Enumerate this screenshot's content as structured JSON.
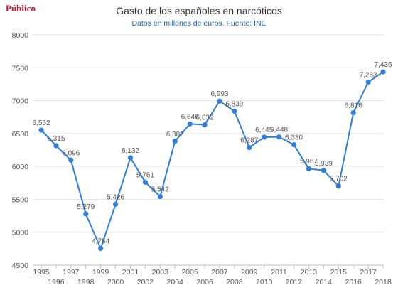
{
  "brand": "Público",
  "chart_data": {
    "type": "line",
    "title": "Gasto de los españoles en narcóticos",
    "subtitle": "Datos en millones de euros. Fuente: INE",
    "xlabel": "",
    "ylabel": "",
    "ylim": [
      4500,
      8000
    ],
    "yticks": [
      4500,
      5000,
      5500,
      6000,
      6500,
      7000,
      7500,
      8000
    ],
    "grid": true,
    "legend": "none",
    "series": [
      {
        "color": "#2f7ed8",
        "points": [
          {
            "x": "1995",
            "y": 6552,
            "label": "6,552"
          },
          {
            "x": "1996",
            "y": 6315,
            "label": "6,315"
          },
          {
            "x": "1997",
            "y": 6096,
            "label": "6,096"
          },
          {
            "x": "1998",
            "y": 5279,
            "label": "5,279"
          },
          {
            "x": "1999",
            "y": 4754,
            "label": "4,754"
          },
          {
            "x": "2000",
            "y": 5426,
            "label": "5,426"
          },
          {
            "x": "2001",
            "y": 6132,
            "label": "6,132"
          },
          {
            "x": "2002",
            "y": 5761,
            "label": "5,761"
          },
          {
            "x": "2003",
            "y": 5542,
            "label": "5,542"
          },
          {
            "x": "2004",
            "y": 6382,
            "label": "6,382"
          },
          {
            "x": "2005",
            "y": 6646,
            "label": "6,646"
          },
          {
            "x": "2006",
            "y": 6632,
            "label": "6,632"
          },
          {
            "x": "2007",
            "y": 6993,
            "label": "6,993"
          },
          {
            "x": "2008",
            "y": 6839,
            "label": "6,839"
          },
          {
            "x": "2009",
            "y": 6287,
            "label": "6,287"
          },
          {
            "x": "2010",
            "y": 6445,
            "label": "6,445"
          },
          {
            "x": "2011",
            "y": 6448,
            "label": "6,448"
          },
          {
            "x": "2012",
            "y": 6330,
            "label": "6,330"
          },
          {
            "x": "2013",
            "y": 5967,
            "label": "5,967"
          },
          {
            "x": "2014",
            "y": 5939,
            "label": "5,939"
          },
          {
            "x": "2015",
            "y": 5702,
            "label": "5,702"
          },
          {
            "x": "2016",
            "y": 6816,
            "label": "6,816"
          },
          {
            "x": "2017",
            "y": 7283,
            "label": "7,283"
          },
          {
            "x": "2018",
            "y": 7436,
            "label": "7,436"
          }
        ]
      }
    ]
  }
}
